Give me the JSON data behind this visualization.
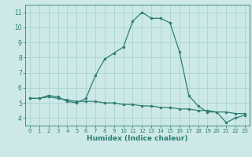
{
  "xlabel": "Humidex (Indice chaleur)",
  "ylabel": "",
  "background_color": "#cce9e7",
  "line_color": "#2e7d72",
  "grid_color": "#aad4d0",
  "x_values": [
    0,
    1,
    2,
    3,
    4,
    5,
    6,
    7,
    8,
    9,
    10,
    11,
    12,
    13,
    14,
    15,
    16,
    17,
    18,
    19,
    20,
    21,
    22,
    23
  ],
  "y_curve1": [
    5.3,
    5.3,
    5.5,
    5.4,
    5.1,
    5.0,
    5.3,
    6.8,
    7.9,
    8.3,
    8.7,
    10.4,
    11.0,
    10.6,
    10.6,
    10.3,
    8.4,
    5.5,
    4.8,
    4.4,
    4.4,
    3.7,
    4.0,
    4.2
  ],
  "y_curve2": [
    5.3,
    5.3,
    5.4,
    5.3,
    5.2,
    5.1,
    5.1,
    5.1,
    5.0,
    5.0,
    4.9,
    4.9,
    4.8,
    4.8,
    4.7,
    4.7,
    4.6,
    4.6,
    4.5,
    4.5,
    4.4,
    4.4,
    4.3,
    4.3
  ],
  "xlim": [
    -0.5,
    23.5
  ],
  "ylim": [
    3.5,
    11.5
  ],
  "yticks": [
    4,
    5,
    6,
    7,
    8,
    9,
    10,
    11
  ],
  "xticks": [
    0,
    1,
    2,
    3,
    4,
    5,
    6,
    7,
    8,
    9,
    10,
    11,
    12,
    13,
    14,
    15,
    16,
    17,
    18,
    19,
    20,
    21,
    22,
    23
  ]
}
